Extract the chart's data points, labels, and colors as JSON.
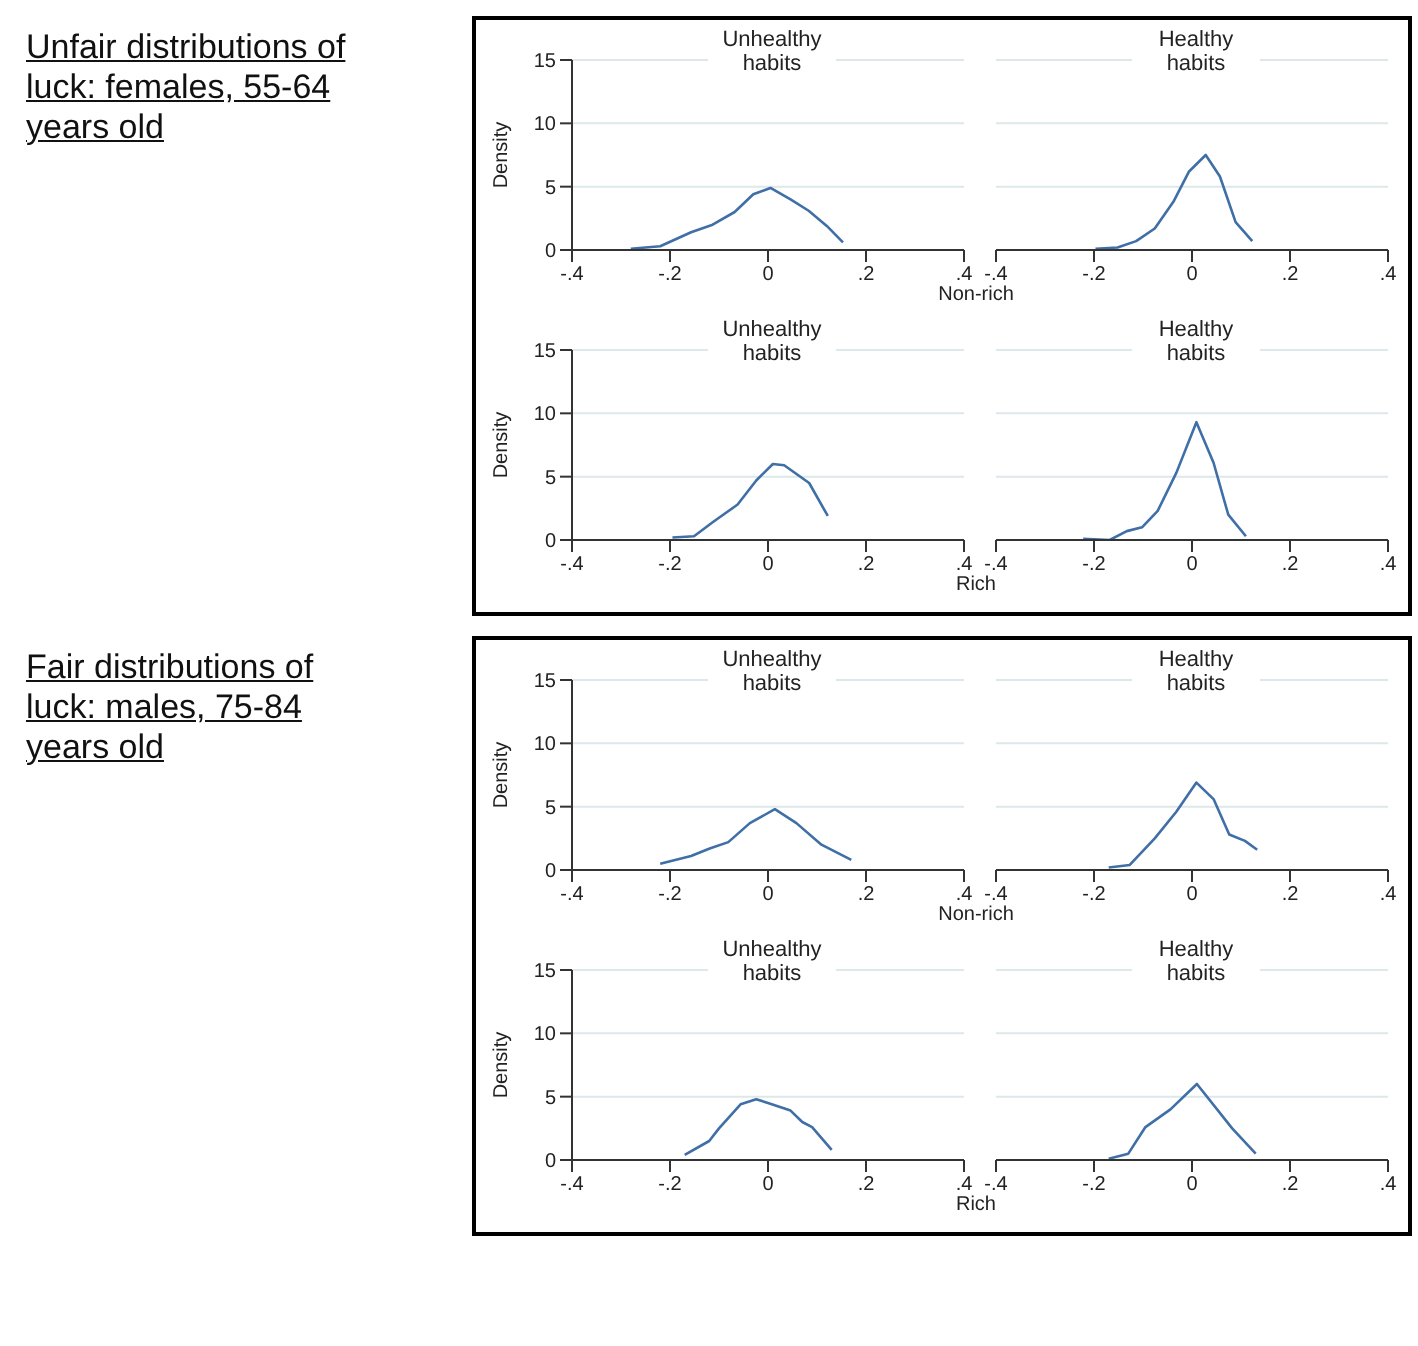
{
  "chart_data": [
    {
      "type": "line",
      "title": "Unhealthy habits",
      "ylabel": "Density",
      "annotations": [
        "Unfair distributions of luck:  females, 55-64 years old"
      ],
      "xlabel": "Non-rich",
      "xlim": [
        -0.4,
        0.4
      ],
      "xticks": [
        {
          "value": -0.4,
          "label": "-.4"
        },
        {
          "value": -0.2,
          "label": "-.2"
        },
        {
          "value": 0,
          "label": "0"
        },
        {
          "value": 0.2,
          "label": ".2"
        },
        {
          "value": 0.4,
          "label": ".4"
        }
      ],
      "ylim": [
        0,
        15
      ],
      "yticks": [
        0,
        5,
        10,
        15
      ],
      "grid": "y",
      "series": [
        {
          "color": "#3f6fa6",
          "x": [
            -0.28,
            -0.22,
            -0.157,
            -0.113,
            -0.068,
            -0.03,
            0.005,
            0.046,
            0.083,
            0.12,
            0.153
          ],
          "values": [
            0.1,
            0.3,
            1.4,
            2.0,
            3.0,
            4.4,
            4.9,
            4.0,
            3.1,
            1.9,
            0.6
          ]
        }
      ]
    },
    {
      "type": "line",
      "title": "Healthy habits",
      "tick_labels": "x",
      "xlim": [
        -0.4,
        0.4
      ],
      "xticks": [
        {
          "value": -0.4,
          "label": "-.4"
        },
        {
          "value": -0.2,
          "label": "-.2"
        },
        {
          "value": 0,
          "label": "0"
        },
        {
          "value": 0.2,
          "label": ".2"
        },
        {
          "value": 0.4,
          "label": ".4"
        }
      ],
      "ylim": [
        0,
        15
      ],
      "yticks": [
        0,
        5,
        10,
        15
      ],
      "grid": "y",
      "series": [
        {
          "color": "#3f6fa6",
          "x": [
            -0.197,
            -0.152,
            -0.114,
            -0.076,
            -0.038,
            -0.006,
            0.028,
            0.057,
            0.089,
            0.123
          ],
          "values": [
            0.1,
            0.2,
            0.7,
            1.7,
            3.8,
            6.2,
            7.5,
            5.8,
            2.2,
            0.7
          ]
        }
      ]
    },
    {
      "type": "line",
      "title": "Unhealthy habits",
      "ylabel": "Density",
      "xlabel": "Rich",
      "xlim": [
        -0.4,
        0.4
      ],
      "xticks": [
        {
          "value": -0.4,
          "label": "-.4"
        },
        {
          "value": -0.2,
          "label": "-.2"
        },
        {
          "value": 0,
          "label": "0"
        },
        {
          "value": 0.2,
          "label": ".2"
        },
        {
          "value": 0.4,
          "label": ".4"
        }
      ],
      "ylim": [
        0,
        15
      ],
      "yticks": [
        0,
        5,
        10,
        15
      ],
      "grid": "y",
      "series": [
        {
          "color": "#3f6fa6",
          "x": [
            -0.195,
            -0.151,
            -0.113,
            -0.062,
            -0.024,
            0.01,
            0.033,
            0.084,
            0.122
          ],
          "values": [
            0.2,
            0.3,
            1.4,
            2.8,
            4.7,
            6.0,
            5.9,
            4.5,
            1.9
          ]
        }
      ]
    },
    {
      "type": "line",
      "title": "Healthy habits",
      "tick_labels": "x",
      "xlim": [
        -0.4,
        0.4
      ],
      "xticks": [
        {
          "value": -0.4,
          "label": "-.4"
        },
        {
          "value": -0.2,
          "label": "-.2"
        },
        {
          "value": 0,
          "label": "0"
        },
        {
          "value": 0.2,
          "label": ".2"
        },
        {
          "value": 0.4,
          "label": ".4"
        }
      ],
      "ylim": [
        0,
        15
      ],
      "yticks": [
        0,
        5,
        10,
        15
      ],
      "grid": "y",
      "series": [
        {
          "color": "#3f6fa6",
          "x": [
            -0.222,
            -0.168,
            -0.133,
            -0.102,
            -0.07,
            -0.032,
            0.009,
            0.044,
            0.074,
            0.11
          ],
          "values": [
            0.1,
            0,
            0.7,
            1.0,
            2.3,
            5.3,
            9.3,
            6.1,
            2.0,
            0.3
          ]
        }
      ]
    },
    {
      "type": "line",
      "title": "Unhealthy habits",
      "ylabel": "Density",
      "annotations": [
        "Fair distributions of luck: males, 75-84 years old"
      ],
      "xlabel": "Non-rich",
      "xlim": [
        -0.4,
        0.4
      ],
      "xticks": [
        {
          "value": -0.4,
          "label": "-.4"
        },
        {
          "value": -0.2,
          "label": "-.2"
        },
        {
          "value": 0,
          "label": "0"
        },
        {
          "value": 0.2,
          "label": ".2"
        },
        {
          "value": 0.4,
          "label": ".4"
        }
      ],
      "ylim": [
        0,
        15
      ],
      "yticks": [
        0,
        5,
        10,
        15
      ],
      "grid": "y",
      "series": [
        {
          "color": "#3f6fa6",
          "x": [
            -0.22,
            -0.157,
            -0.119,
            -0.081,
            -0.037,
            0.014,
            0.058,
            0.109,
            0.17
          ],
          "values": [
            0.5,
            1.1,
            1.7,
            2.2,
            3.7,
            4.8,
            3.7,
            2.0,
            0.8
          ]
        }
      ]
    },
    {
      "type": "line",
      "title": "Healthy habits",
      "tick_labels": "x",
      "xlim": [
        -0.4,
        0.4
      ],
      "xticks": [
        {
          "value": -0.4,
          "label": "-.4"
        },
        {
          "value": -0.2,
          "label": "-.2"
        },
        {
          "value": 0,
          "label": "0"
        },
        {
          "value": 0.2,
          "label": ".2"
        },
        {
          "value": 0.4,
          "label": ".4"
        }
      ],
      "ylim": [
        0,
        15
      ],
      "yticks": [
        0,
        5,
        10,
        15
      ],
      "grid": "y",
      "series": [
        {
          "color": "#3f6fa6",
          "x": [
            -0.17,
            -0.127,
            -0.076,
            -0.032,
            0.009,
            0.044,
            0.076,
            0.108,
            0.133
          ],
          "values": [
            0.2,
            0.4,
            2.5,
            4.6,
            6.9,
            5.6,
            2.8,
            2.3,
            1.6
          ]
        }
      ]
    },
    {
      "type": "line",
      "title": "Unhealthy habits",
      "ylabel": "Density",
      "xlabel": "Rich",
      "xlim": [
        -0.4,
        0.4
      ],
      "xticks": [
        {
          "value": -0.4,
          "label": "-.4"
        },
        {
          "value": -0.2,
          "label": "-.2"
        },
        {
          "value": 0,
          "label": "0"
        },
        {
          "value": 0.2,
          "label": ".2"
        },
        {
          "value": 0.4,
          "label": ".4"
        }
      ],
      "ylim": [
        0,
        15
      ],
      "yticks": [
        0,
        5,
        10,
        15
      ],
      "grid": "y",
      "series": [
        {
          "color": "#3f6fa6",
          "x": [
            -0.17,
            -0.12,
            -0.1,
            -0.056,
            -0.024,
            0.0,
            0.046,
            0.07,
            0.09,
            0.13
          ],
          "values": [
            0.4,
            1.5,
            2.5,
            4.4,
            4.8,
            4.5,
            3.9,
            3.0,
            2.6,
            0.8
          ]
        }
      ]
    },
    {
      "type": "line",
      "title": "Healthy habits",
      "tick_labels": "x",
      "xlim": [
        -0.4,
        0.4
      ],
      "xticks": [
        {
          "value": -0.4,
          "label": "-.4"
        },
        {
          "value": -0.2,
          "label": "-.2"
        },
        {
          "value": 0,
          "label": "0"
        },
        {
          "value": 0.2,
          "label": ".2"
        },
        {
          "value": 0.4,
          "label": ".4"
        }
      ],
      "ylim": [
        0,
        15
      ],
      "yticks": [
        0,
        5,
        10,
        15
      ],
      "grid": "y",
      "series": [
        {
          "color": "#3f6fa6",
          "x": [
            -0.17,
            -0.13,
            -0.095,
            -0.044,
            0.01,
            0.082,
            0.13
          ],
          "values": [
            0.1,
            0.5,
            2.6,
            4.0,
            6.0,
            2.5,
            0.5
          ]
        }
      ]
    }
  ]
}
